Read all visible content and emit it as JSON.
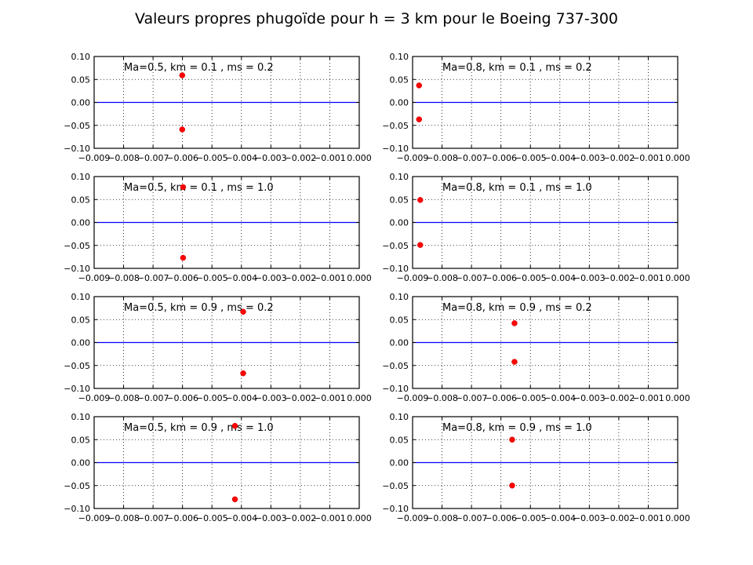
{
  "figure": {
    "title": "Valeurs propres phugoïde pour h = 3 km pour le Boeing 737-300"
  },
  "chart_data": {
    "type": "scatter",
    "layout": {
      "rows": 4,
      "cols": 2
    },
    "xlim": [
      -0.009,
      0.0
    ],
    "ylim": [
      -0.1,
      0.1
    ],
    "xticks": [
      -0.009,
      -0.008,
      -0.007,
      -0.006,
      -0.005,
      -0.004,
      -0.003,
      -0.002,
      -0.001,
      0.0
    ],
    "xtick_labels": [
      "−0.009",
      "−0.008",
      "−0.007",
      "−0.006",
      "−0.005",
      "−0.004",
      "−0.003",
      "−0.002",
      "−0.001",
      "0.000"
    ],
    "yticks": [
      0.1,
      0.05,
      0.0,
      -0.05,
      -0.1
    ],
    "ytick_labels": [
      "0.10",
      "0.05",
      "0.00",
      "−0.05",
      "−0.10"
    ],
    "grid": true,
    "grid_style": "dotted",
    "marker_color": "#ff0000",
    "zero_line_color": "#0000ff",
    "panels": [
      {
        "annotation": "Ma=0.5, km = 0.1 , ms = 0.2",
        "points": [
          [
            -0.00601,
            0.059
          ],
          [
            -0.00601,
            -0.059
          ]
        ]
      },
      {
        "annotation": "Ma=0.8, km = 0.1 , ms = 0.2",
        "points": [
          [
            -0.00878,
            0.037
          ],
          [
            -0.00878,
            -0.037
          ]
        ]
      },
      {
        "annotation": "Ma=0.5, km = 0.1 , ms = 1.0",
        "points": [
          [
            -0.00598,
            0.077
          ],
          [
            -0.00598,
            -0.077
          ]
        ]
      },
      {
        "annotation": "Ma=0.8, km = 0.1 , ms = 1.0",
        "points": [
          [
            -0.00874,
            0.049
          ],
          [
            -0.00874,
            -0.049
          ]
        ]
      },
      {
        "annotation": "Ma=0.5, km = 0.9 , ms = 0.2",
        "points": [
          [
            -0.00394,
            0.067
          ],
          [
            -0.00394,
            -0.067
          ]
        ]
      },
      {
        "annotation": "Ma=0.8, km = 0.9 , ms = 0.2",
        "points": [
          [
            -0.00554,
            0.042
          ],
          [
            -0.00554,
            -0.042
          ]
        ]
      },
      {
        "annotation": "Ma=0.5, km = 0.9 , ms = 1.0",
        "points": [
          [
            -0.00422,
            0.08
          ],
          [
            -0.00422,
            -0.08
          ]
        ]
      },
      {
        "annotation": "Ma=0.8, km = 0.9 , ms = 1.0",
        "points": [
          [
            -0.00562,
            0.05
          ],
          [
            -0.00562,
            -0.05
          ]
        ]
      }
    ]
  }
}
